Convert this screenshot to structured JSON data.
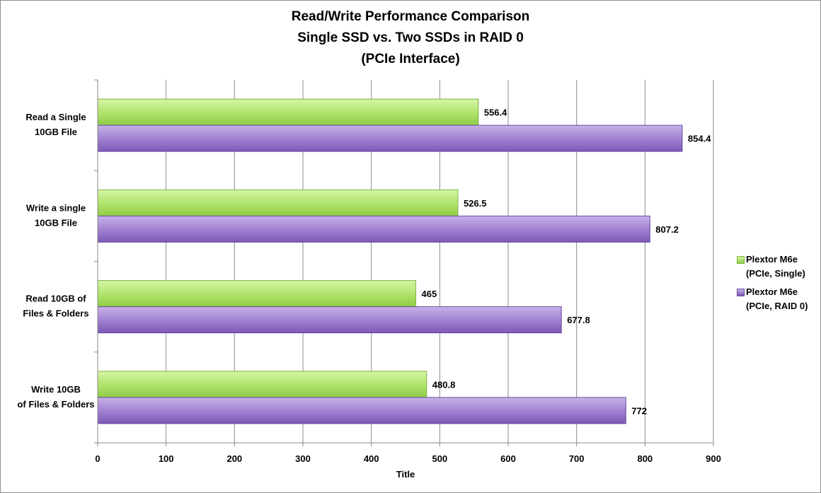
{
  "chart_data": {
    "type": "bar",
    "orientation": "horizontal",
    "title_lines": [
      "Read/Write Performance Comparison",
      "Single SSD vs. Two SSDs in RAID 0",
      "(PCIe Interface)"
    ],
    "xlabel": "Title",
    "ylabel": "",
    "xlim": [
      0,
      900
    ],
    "x_ticks": [
      0,
      100,
      200,
      300,
      400,
      500,
      600,
      700,
      800,
      900
    ],
    "grid": true,
    "legend_position": "right",
    "categories": [
      [
        "Read a Single",
        "10GB File"
      ],
      [
        "Write a single",
        "10GB File"
      ],
      [
        "Read 10GB of",
        "Files & Folders"
      ],
      [
        "Write 10GB",
        "of Files & Folders"
      ]
    ],
    "series": [
      {
        "name": "Plextor M6e (PCIe, Single)",
        "legend_lines": [
          "Plextor M6e",
          "(PCIe, Single)"
        ],
        "color": "#a8dc5c",
        "values": [
          556.4,
          526.5,
          465,
          480.8
        ]
      },
      {
        "name": "Plextor M6e (PCIe, RAID 0)",
        "legend_lines": [
          "Plextor M6e",
          "(PCIe, RAID 0)"
        ],
        "color": "#9b78c9",
        "values": [
          854.4,
          807.2,
          677.8,
          772
        ]
      }
    ]
  }
}
